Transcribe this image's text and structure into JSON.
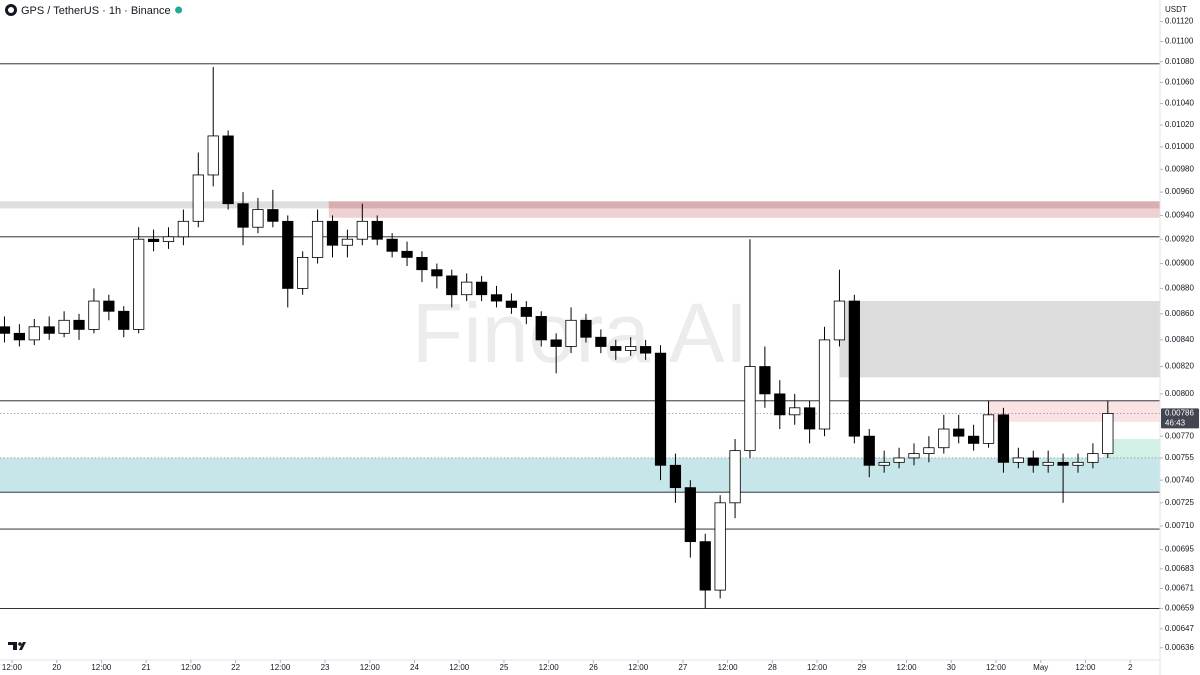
{
  "chart_data": {
    "type": "candlestick",
    "title": "GPS / TetherUS · 1h · Binance",
    "currency": "USDT",
    "watermark": "Finora AI",
    "log_scale": true,
    "up_color": "#ffffff",
    "down_color": "#000000",
    "x": [
      8,
      12,
      16,
      20,
      24,
      28,
      32,
      36,
      40,
      44,
      48,
      52,
      56,
      60,
      64,
      68,
      72,
      76,
      80,
      84,
      88,
      92,
      96,
      100,
      104,
      108,
      112,
      116,
      120,
      124,
      128,
      132,
      136,
      140,
      144,
      148,
      152,
      156,
      160,
      164,
      168,
      172,
      176,
      180,
      184,
      188,
      192,
      196,
      200,
      204,
      208,
      212,
      216,
      220,
      224,
      228,
      232,
      236,
      240,
      244,
      248,
      252,
      256,
      260,
      264,
      268,
      272,
      276,
      280,
      284,
      288,
      292,
      296,
      300,
      304
    ],
    "open": [
      0.0085,
      0.00845,
      0.0084,
      0.0085,
      0.00845,
      0.00855,
      0.00848,
      0.0087,
      0.00862,
      0.00848,
      0.0092,
      0.00918,
      0.00922,
      0.00935,
      0.00975,
      0.0101,
      0.0095,
      0.0093,
      0.00945,
      0.00935,
      0.0088,
      0.00905,
      0.00935,
      0.00915,
      0.0092,
      0.00935,
      0.0092,
      0.0091,
      0.00905,
      0.00895,
      0.0089,
      0.00875,
      0.00885,
      0.00875,
      0.0087,
      0.00865,
      0.00858,
      0.0084,
      0.00835,
      0.00855,
      0.00842,
      0.00835,
      0.00832,
      0.00835,
      0.0083,
      0.0075,
      0.00735,
      0.007,
      0.0067,
      0.00725,
      0.0076,
      0.0082,
      0.008,
      0.00785,
      0.0079,
      0.00775,
      0.0084,
      0.0087,
      0.0077,
      0.0075,
      0.00752,
      0.00755,
      0.00758,
      0.00762,
      0.00775,
      0.0077,
      0.00765,
      0.00785,
      0.00752,
      0.00755,
      0.0075,
      0.00752,
      0.0075,
      0.00752,
      0.00758
    ],
    "high": [
      0.00858,
      0.00852,
      0.00856,
      0.00858,
      0.00862,
      0.0086,
      0.0088,
      0.00875,
      0.00866,
      0.0093,
      0.00928,
      0.0093,
      0.00945,
      0.00995,
      0.01075,
      0.01015,
      0.0096,
      0.00955,
      0.00962,
      0.0094,
      0.0091,
      0.00945,
      0.0094,
      0.00928,
      0.0095,
      0.0094,
      0.00925,
      0.00918,
      0.0091,
      0.009,
      0.00895,
      0.00892,
      0.0089,
      0.00882,
      0.00876,
      0.0087,
      0.00862,
      0.00845,
      0.00865,
      0.0086,
      0.00848,
      0.0084,
      0.00842,
      0.0084,
      0.00836,
      0.00758,
      0.0074,
      0.00705,
      0.0073,
      0.00768,
      0.0092,
      0.00835,
      0.0081,
      0.008,
      0.00795,
      0.0085,
      0.00895,
      0.00875,
      0.00775,
      0.0076,
      0.00762,
      0.00765,
      0.0077,
      0.00785,
      0.00785,
      0.00778,
      0.00795,
      0.0079,
      0.00762,
      0.0076,
      0.0076,
      0.00758,
      0.00758,
      0.00765,
      0.00795
    ],
    "low": [
      0.00838,
      0.00835,
      0.00836,
      0.0084,
      0.00842,
      0.0084,
      0.00845,
      0.00855,
      0.00842,
      0.00845,
      0.0091,
      0.00912,
      0.00915,
      0.0093,
      0.00965,
      0.00945,
      0.00915,
      0.00925,
      0.0093,
      0.00865,
      0.00875,
      0.009,
      0.00905,
      0.00905,
      0.00915,
      0.00915,
      0.00905,
      0.00898,
      0.00885,
      0.0088,
      0.00865,
      0.0087,
      0.0087,
      0.00865,
      0.0086,
      0.00852,
      0.00835,
      0.00815,
      0.0083,
      0.00838,
      0.0083,
      0.00825,
      0.00828,
      0.00825,
      0.0074,
      0.00725,
      0.0069,
      0.00659,
      0.00665,
      0.00715,
      0.00755,
      0.0079,
      0.00775,
      0.00778,
      0.00765,
      0.0077,
      0.00835,
      0.00765,
      0.00742,
      0.00745,
      0.00748,
      0.0075,
      0.00752,
      0.00758,
      0.00765,
      0.0076,
      0.00762,
      0.00745,
      0.00748,
      0.00745,
      0.00745,
      0.00725,
      0.00745,
      0.00748,
      0.00755
    ],
    "close": [
      0.00845,
      0.0084,
      0.0085,
      0.00845,
      0.00855,
      0.00848,
      0.0087,
      0.00862,
      0.00848,
      0.0092,
      0.00918,
      0.00922,
      0.00935,
      0.00975,
      0.0101,
      0.0095,
      0.0093,
      0.00945,
      0.00935,
      0.0088,
      0.00905,
      0.00935,
      0.00915,
      0.0092,
      0.00935,
      0.0092,
      0.0091,
      0.00905,
      0.00895,
      0.0089,
      0.00875,
      0.00885,
      0.00875,
      0.0087,
      0.00865,
      0.00858,
      0.0084,
      0.00835,
      0.00855,
      0.00842,
      0.00835,
      0.00832,
      0.00835,
      0.0083,
      0.0075,
      0.00735,
      0.007,
      0.0067,
      0.00725,
      0.0076,
      0.0082,
      0.008,
      0.00785,
      0.0079,
      0.00775,
      0.0084,
      0.0087,
      0.0077,
      0.0075,
      0.00752,
      0.00755,
      0.00758,
      0.00762,
      0.00775,
      0.0077,
      0.00765,
      0.00785,
      0.00752,
      0.00755,
      0.0075,
      0.00752,
      0.0075,
      0.00752,
      0.00758,
      0.00786
    ],
    "xlim": [
      8.8,
      320
    ],
    "ylim": [
      0.00629,
      0.01142
    ],
    "xticks": [
      {
        "value": 12,
        "label": "12:00"
      },
      {
        "value": 24,
        "label": "20"
      },
      {
        "value": 36,
        "label": "12:00"
      },
      {
        "value": 48,
        "label": "21"
      },
      {
        "value": 60,
        "label": "12:00"
      },
      {
        "value": 72,
        "label": "22"
      },
      {
        "value": 84,
        "label": "12:00"
      },
      {
        "value": 96,
        "label": "23"
      },
      {
        "value": 108,
        "label": "12:00"
      },
      {
        "value": 120,
        "label": "24"
      },
      {
        "value": 132,
        "label": "12:00"
      },
      {
        "value": 144,
        "label": "25"
      },
      {
        "value": 156,
        "label": "12:00"
      },
      {
        "value": 168,
        "label": "26"
      },
      {
        "value": 180,
        "label": "12:00"
      },
      {
        "value": 192,
        "label": "27"
      },
      {
        "value": 204,
        "label": "12:00"
      },
      {
        "value": 216,
        "label": "28"
      },
      {
        "value": 228,
        "label": "12:00"
      },
      {
        "value": 240,
        "label": "29"
      },
      {
        "value": 252,
        "label": "12:00"
      },
      {
        "value": 264,
        "label": "30"
      },
      {
        "value": 276,
        "label": "12:00"
      },
      {
        "value": 288,
        "label": "May"
      },
      {
        "value": 300,
        "label": "12:00"
      },
      {
        "value": 312,
        "label": "2"
      }
    ],
    "yticks": [
      {
        "value": 0.0112,
        "label": "0.01120"
      },
      {
        "value": 0.011,
        "label": "0.01100"
      },
      {
        "value": 0.0108,
        "label": "0.01080"
      },
      {
        "value": 0.0106,
        "label": "0.01060"
      },
      {
        "value": 0.0104,
        "label": "0.01040"
      },
      {
        "value": 0.0102,
        "label": "0.01020"
      },
      {
        "value": 0.01,
        "label": "0.01000"
      },
      {
        "value": 0.0098,
        "label": "0.00980"
      },
      {
        "value": 0.0096,
        "label": "0.00960"
      },
      {
        "value": 0.0094,
        "label": "0.00940"
      },
      {
        "value": 0.0092,
        "label": "0.00920"
      },
      {
        "value": 0.009,
        "label": "0.00900"
      },
      {
        "value": 0.0088,
        "label": "0.00880"
      },
      {
        "value": 0.0086,
        "label": "0.00860"
      },
      {
        "value": 0.0084,
        "label": "0.00840"
      },
      {
        "value": 0.0082,
        "label": "0.00820"
      },
      {
        "value": 0.008,
        "label": "0.00800"
      },
      {
        "value": 0.0077,
        "label": "0.00770"
      },
      0.00755,
      {
        "value": 0.0074,
        "label": "0.00740"
      },
      0.00725,
      {
        "value": 0.0071,
        "label": "0.00710"
      },
      0.00695,
      0.00683,
      0.00671,
      0.00659,
      0.00647,
      0.00636
    ],
    "zones": [
      {
        "from": 8.8,
        "low": 0.00946,
        "high": 0.00952,
        "color": "#dedede"
      },
      {
        "from": 97,
        "low": 0.00938,
        "high": 0.00952,
        "color": "#efd0d3"
      },
      {
        "from": 97,
        "low": 0.00946,
        "high": 0.00952,
        "color": "#d9aeb3"
      },
      {
        "from": 234,
        "low": 0.00812,
        "high": 0.0087,
        "color": "#dcdcdd"
      },
      {
        "from": 274,
        "low": 0.0078,
        "high": 0.00795,
        "color": "#fbe3e4"
      },
      {
        "from": 8.8,
        "low": 0.00732,
        "high": 0.00755,
        "color": "#c7e6ea"
      },
      {
        "from": 305,
        "low": 0.00755,
        "high": 0.00768,
        "color": "#d3f0e6"
      }
    ],
    "levels": [
      {
        "value": 0.01078,
        "style": "solid"
      },
      {
        "value": 0.00922,
        "style": "solid"
      },
      {
        "value": 0.00795,
        "style": "solid"
      },
      {
        "value": 0.00786,
        "style": "dotted"
      },
      {
        "value": 0.00755,
        "style": "dotted"
      },
      {
        "value": 0.00732,
        "style": "solid"
      },
      {
        "value": 0.00708,
        "style": "solid"
      },
      {
        "value": 0.00659,
        "style": "solid"
      }
    ],
    "last_price": 0.00786,
    "countdown": "46:43"
  }
}
